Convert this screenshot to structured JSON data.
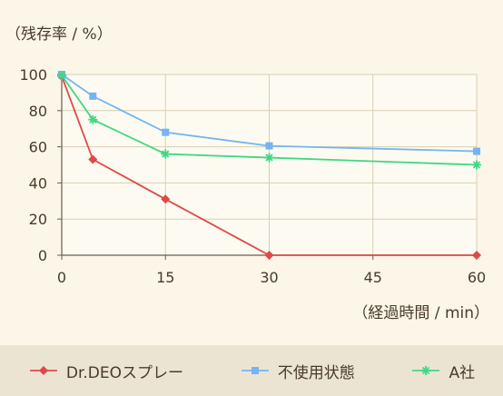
{
  "chart_data": {
    "type": "line",
    "ylabel": "（残存率 / %）",
    "xlabel": "（経過時間 / min）",
    "x_ticks": [
      0,
      15,
      30,
      45,
      60
    ],
    "y_ticks": [
      0,
      20,
      40,
      60,
      80,
      100
    ],
    "xlim": [
      0,
      60
    ],
    "ylim": [
      0,
      100
    ],
    "grid": true,
    "legend_position": "bottom",
    "series": [
      {
        "name": "Dr.DEOスプレー",
        "color": "#e04848",
        "marker": "diamond",
        "points": [
          [
            0,
            99
          ],
          [
            4.5,
            53
          ],
          [
            15,
            31
          ],
          [
            30,
            0
          ],
          [
            60,
            0
          ]
        ]
      },
      {
        "name": "不使用状態",
        "color": "#74b4f4",
        "marker": "square",
        "points": [
          [
            0,
            100
          ],
          [
            4.5,
            88
          ],
          [
            15,
            68
          ],
          [
            30,
            60.5
          ],
          [
            60,
            57.5
          ]
        ]
      },
      {
        "name": "A社",
        "color": "#3ed884",
        "marker": "asterisk",
        "points": [
          [
            0,
            99.5
          ],
          [
            4.5,
            75
          ],
          [
            15,
            56
          ],
          [
            30,
            54
          ],
          [
            60,
            50
          ]
        ]
      }
    ]
  },
  "colors": {
    "page_background": "#fbf6e8",
    "plot_background": "#fdfbf1",
    "grid": "#d8ceb0",
    "axis": "#6a5e4a",
    "legend_band": "#ece4d3",
    "text": "#4a3a2a"
  }
}
